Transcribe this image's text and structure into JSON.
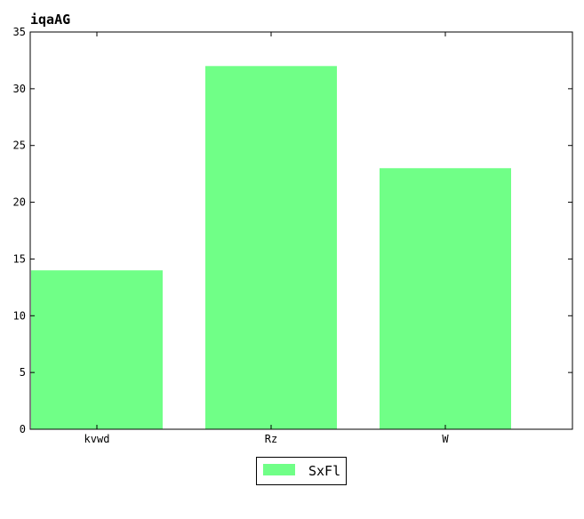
{
  "chart_data": {
    "type": "bar",
    "title": "iqaAG",
    "xlabel": "",
    "ylabel": "",
    "categories": [
      "kvwd",
      "Rz",
      "W"
    ],
    "series": [
      {
        "name": "SxFl",
        "values": [
          14,
          32,
          23
        ]
      }
    ],
    "ylim": [
      0,
      35
    ],
    "yticks": [
      0,
      5,
      10,
      15,
      20,
      25,
      30,
      35
    ],
    "grid": false,
    "legend_position": "bottom-center",
    "bar_color": "#70ff87"
  }
}
